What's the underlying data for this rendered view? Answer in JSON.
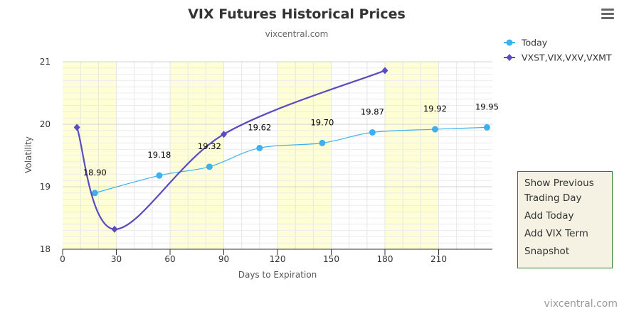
{
  "chart_data": {
    "type": "line",
    "title": "VIX Futures Historical Prices",
    "subtitle": "vixcentral.com",
    "xlabel": "Days to Expiration",
    "ylabel": "Volatility",
    "xlim": [
      0,
      240
    ],
    "ylim": [
      18,
      21
    ],
    "x_ticks": [
      0,
      30,
      60,
      90,
      120,
      150,
      180,
      210
    ],
    "y_ticks": [
      18,
      19,
      20,
      21
    ],
    "grid": true,
    "legend_position": "top-right",
    "bands": [
      [
        0,
        30
      ],
      [
        60,
        90
      ],
      [
        120,
        150
      ],
      [
        180,
        210
      ]
    ],
    "series": [
      {
        "name": "Today",
        "color": "#3fb0ee",
        "marker": "circle",
        "x": [
          18,
          54,
          82,
          110,
          145,
          173,
          208,
          237
        ],
        "y": [
          18.9,
          19.18,
          19.32,
          19.62,
          19.7,
          19.87,
          19.92,
          19.95
        ],
        "labels": [
          "18.90",
          "19.18",
          "19.32",
          "19.62",
          "19.70",
          "19.87",
          "19.92",
          "19.95"
        ]
      },
      {
        "name": "VXST,VIX,VXV,VXMT",
        "color": "#5a4bbf",
        "marker": "diamond",
        "x": [
          8,
          29,
          90,
          180
        ],
        "y": [
          19.95,
          18.32,
          19.84,
          20.86
        ]
      }
    ]
  },
  "credits": "vixcentral.com",
  "menu": {
    "icon": "hamburger-menu-icon",
    "items": [
      "Show Previous Trading Day",
      "Add Today",
      "Add VIX Term",
      "Snapshot"
    ]
  }
}
